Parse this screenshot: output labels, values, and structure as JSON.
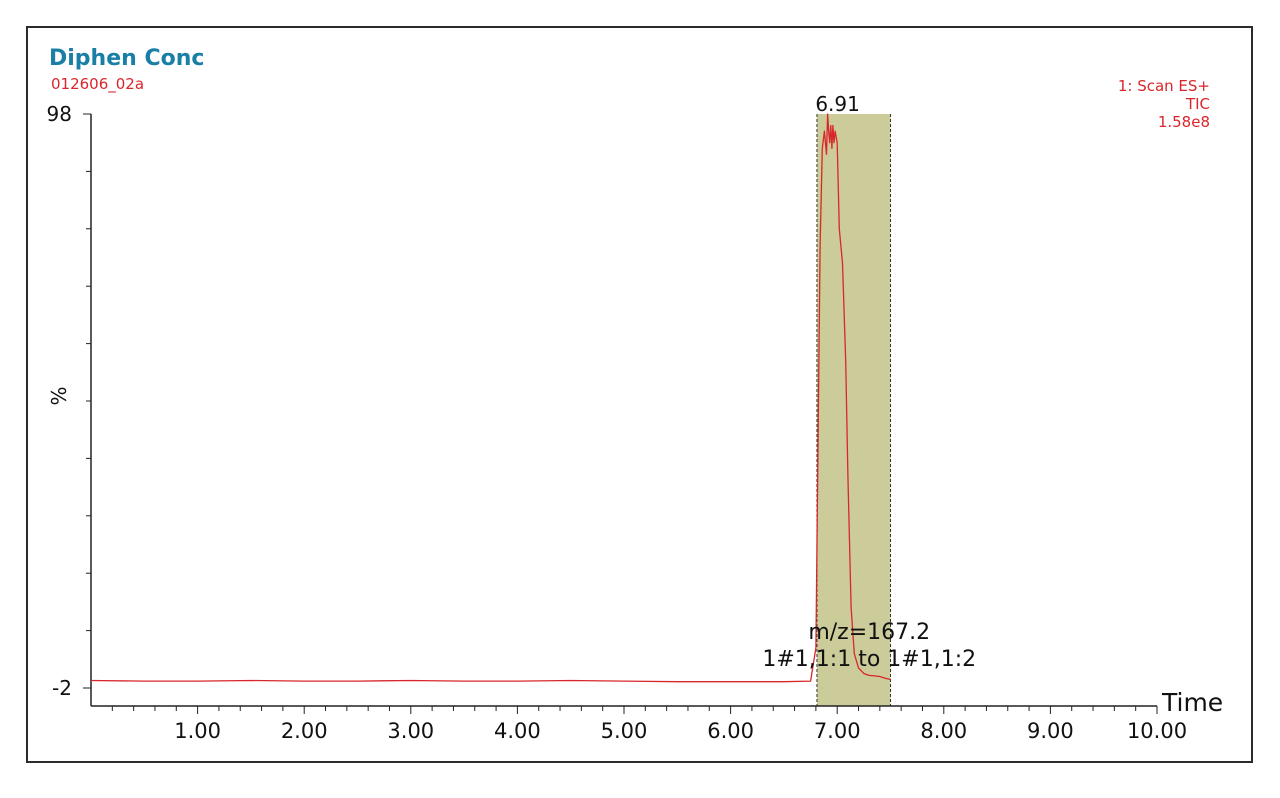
{
  "header": {
    "title": "Diphen Conc",
    "subtitle": "012606_02a",
    "scan": "1: Scan ES+",
    "trace": "TIC",
    "intensity": "1.58e8"
  },
  "colors": {
    "title": "#1a7fa6",
    "trace": "#d9262b",
    "integration_fill": "#cccc9a",
    "axis": "#222222"
  },
  "chart_data": {
    "type": "line",
    "xlabel": "Time",
    "ylabel": "%",
    "xlim": [
      0,
      10.0
    ],
    "ylim": [
      -2,
      98
    ],
    "x_ticks": [
      "1.00",
      "2.00",
      "3.00",
      "4.00",
      "5.00",
      "6.00",
      "7.00",
      "8.00",
      "9.00",
      "10.00"
    ],
    "x_tick_values": [
      1,
      2,
      3,
      4,
      5,
      6,
      7,
      8,
      9,
      10
    ],
    "y_ticks": [
      "98",
      "-2"
    ],
    "y_tick_values": [
      98,
      -2
    ],
    "integration_range": [
      6.81,
      7.5
    ],
    "annotations": {
      "peak_label": "6.91",
      "peak_x": 6.91,
      "peak_y": 98,
      "mz_line1": "m/z=167.2",
      "mz_line2": "1#1,1:1 to 1#1,1:2",
      "mz_anchor_x": 7.16
    },
    "series": [
      {
        "x": [
          0.0,
          0.5,
          1.0,
          1.5,
          2.0,
          2.5,
          3.0,
          3.5,
          4.0,
          4.5,
          5.0,
          5.5,
          6.0,
          6.5,
          6.75,
          6.8,
          6.82,
          6.84,
          6.86,
          6.88,
          6.9,
          6.91,
          6.92,
          6.93,
          6.94,
          6.95,
          6.96,
          6.97,
          6.98,
          7.0,
          7.02,
          7.05,
          7.08,
          7.1,
          7.13,
          7.16,
          7.2,
          7.25,
          7.3,
          7.35,
          7.4,
          7.45,
          7.5
        ],
        "y": [
          -0.7,
          -0.8,
          -0.8,
          -0.7,
          -0.8,
          -0.8,
          -0.7,
          -0.8,
          -0.8,
          -0.7,
          -0.8,
          -0.9,
          -0.9,
          -0.9,
          -0.8,
          5,
          40,
          75,
          92,
          95,
          91,
          98,
          95,
          93,
          96,
          92,
          96,
          93,
          95,
          93,
          78,
          72,
          55,
          35,
          12,
          4,
          1.5,
          0.5,
          0.2,
          0.1,
          0.0,
          -0.3,
          -0.5
        ]
      }
    ]
  }
}
